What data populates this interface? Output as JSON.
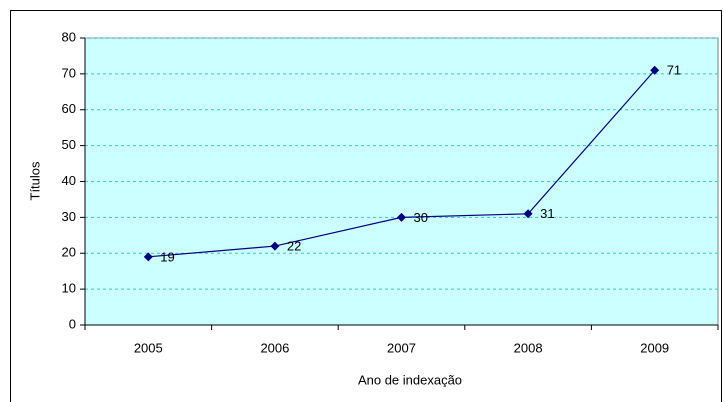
{
  "chart_data": {
    "type": "line",
    "categories": [
      "2005",
      "2006",
      "2007",
      "2008",
      "2009"
    ],
    "series": [
      {
        "name": "Títulos",
        "color": "#000080",
        "values": [
          19,
          22,
          30,
          31,
          71
        ]
      }
    ],
    "ylim": [
      0,
      80
    ],
    "yticks": [
      0,
      10,
      20,
      30,
      40,
      50,
      60,
      70,
      80
    ],
    "grid": true,
    "ylabel": "Títulos",
    "xlabel": "Ano de indexação",
    "plot_background": "#ccffff",
    "grid_color": "#33cccc"
  }
}
